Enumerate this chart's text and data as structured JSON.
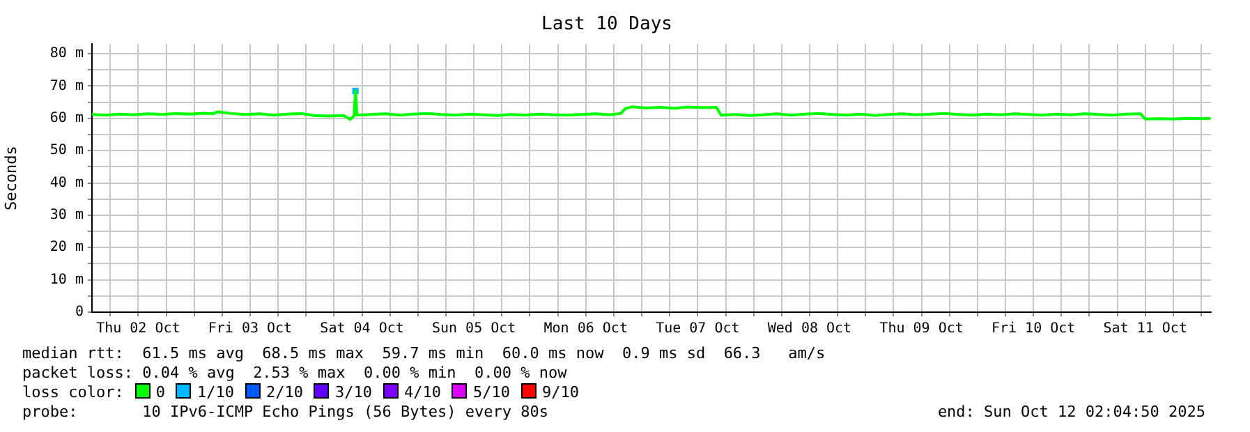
{
  "chart_data": {
    "type": "line",
    "title": "Last 10 Days",
    "ylabel": "Seconds",
    "legend_title": "loss color:",
    "x": [
      "2025-10-02T02:06",
      "2025-10-02T05:00",
      "2025-10-02T08:00",
      "2025-10-02T11:00",
      "2025-10-02T14:00",
      "2025-10-02T17:00",
      "2025-10-02T20:00",
      "2025-10-02T23:00",
      "2025-10-03T02:00",
      "2025-10-03T04:00",
      "2025-10-03T05:00",
      "2025-10-03T08:00",
      "2025-10-03T11:00",
      "2025-10-03T14:00",
      "2025-10-03T17:00",
      "2025-10-03T20:00",
      "2025-10-03T23:00",
      "2025-10-04T02:00",
      "2025-10-04T05:00",
      "2025-10-04T08:00",
      "2025-10-04T09:30",
      "2025-10-04T10:18",
      "2025-10-04T10:36",
      "2025-10-04T10:54",
      "2025-10-04T14:00",
      "2025-10-04T17:00",
      "2025-10-04T20:00",
      "2025-10-04T23:00",
      "2025-10-05T02:00",
      "2025-10-05T05:00",
      "2025-10-05T08:00",
      "2025-10-05T11:00",
      "2025-10-05T14:00",
      "2025-10-05T17:00",
      "2025-10-05T20:00",
      "2025-10-05T23:00",
      "2025-10-06T02:00",
      "2025-10-06T05:00",
      "2025-10-06T08:00",
      "2025-10-06T11:00",
      "2025-10-06T14:00",
      "2025-10-06T17:00",
      "2025-10-06T19:30",
      "2025-10-06T20:30",
      "2025-10-06T22:00",
      "2025-10-07T01:00",
      "2025-10-07T04:00",
      "2025-10-07T07:00",
      "2025-10-07T10:00",
      "2025-10-07T13:00",
      "2025-10-07T16:00",
      "2025-10-07T17:00",
      "2025-10-07T20:00",
      "2025-10-07T23:00",
      "2025-10-08T02:00",
      "2025-10-08T05:00",
      "2025-10-08T08:00",
      "2025-10-08T11:00",
      "2025-10-08T14:00",
      "2025-10-08T17:00",
      "2025-10-08T20:00",
      "2025-10-08T23:00",
      "2025-10-09T02:00",
      "2025-10-09T05:00",
      "2025-10-09T08:00",
      "2025-10-09T11:00",
      "2025-10-09T14:00",
      "2025-10-09T17:00",
      "2025-10-09T20:00",
      "2025-10-09T23:00",
      "2025-10-10T02:00",
      "2025-10-10T05:00",
      "2025-10-10T08:00",
      "2025-10-10T11:00",
      "2025-10-10T14:00",
      "2025-10-10T17:00",
      "2025-10-10T20:00",
      "2025-10-10T23:00",
      "2025-10-11T02:00",
      "2025-10-11T05:00",
      "2025-10-11T08:00",
      "2025-10-11T11:00",
      "2025-10-11T12:00",
      "2025-10-11T15:00",
      "2025-10-11T18:00",
      "2025-10-11T21:00",
      "2025-10-12T00:00",
      "2025-10-12T02:00"
    ],
    "series": [
      {
        "name": "0",
        "color": "#00ff00",
        "values": [
          61.2,
          61.0,
          61.3,
          61.1,
          61.4,
          61.2,
          61.5,
          61.3,
          61.6,
          61.4,
          62.0,
          61.5,
          61.2,
          61.4,
          61.0,
          61.3,
          61.5,
          60.8,
          60.7,
          60.9,
          59.7,
          60.8,
          68.5,
          61.0,
          61.2,
          61.4,
          61.0,
          61.3,
          61.5,
          61.2,
          61.0,
          61.3,
          61.1,
          60.9,
          61.2,
          61.0,
          61.3,
          61.1,
          61.0,
          61.2,
          61.4,
          61.1,
          61.5,
          63.0,
          63.6,
          63.2,
          63.4,
          63.1,
          63.5,
          63.3,
          63.4,
          61.0,
          61.2,
          60.9,
          61.1,
          61.4,
          61.0,
          61.3,
          61.5,
          61.2,
          61.0,
          61.3,
          60.9,
          61.2,
          61.4,
          61.1,
          61.3,
          61.5,
          61.2,
          61.0,
          61.3,
          61.1,
          61.4,
          61.2,
          61.0,
          61.3,
          61.1,
          61.4,
          61.2,
          61.0,
          61.3,
          61.4,
          59.8,
          59.9,
          59.8,
          60.0,
          59.9,
          60.0
        ]
      },
      {
        "name": "1/10",
        "color": "#00b8ff",
        "type": "scatter",
        "marker": "square",
        "values": [
          null,
          null,
          null,
          null,
          null,
          null,
          null,
          null,
          null,
          null,
          null,
          null,
          null,
          null,
          null,
          null,
          null,
          null,
          null,
          null,
          null,
          null,
          68.5,
          null,
          null,
          null,
          null,
          null,
          null,
          null,
          null,
          null,
          null,
          null,
          null,
          null,
          null,
          null,
          null,
          null,
          null,
          null,
          null,
          null,
          null,
          null,
          null,
          null,
          null,
          null,
          null,
          null,
          null,
          null,
          null,
          null,
          null,
          null,
          null,
          null,
          null,
          null,
          null,
          null,
          null,
          null,
          null,
          null,
          null,
          null,
          null,
          null,
          null,
          null,
          null,
          null,
          null,
          null,
          null,
          null,
          null,
          null,
          null,
          null,
          null,
          null,
          null,
          null
        ]
      },
      {
        "name": "2/10",
        "color": "#0059ff",
        "type": "scatter",
        "marker": "square",
        "values": [
          null,
          null,
          null,
          null,
          null,
          null,
          null,
          null,
          null,
          null,
          null,
          null,
          null,
          null,
          null,
          null,
          null,
          null,
          null,
          null,
          null,
          null,
          null,
          null,
          null,
          null,
          null,
          null,
          null,
          null,
          null,
          null,
          null,
          null,
          null,
          null,
          null,
          null,
          null,
          null,
          null,
          null,
          null,
          null,
          null,
          null,
          null,
          null,
          null,
          null,
          null,
          null,
          null,
          null,
          null,
          null,
          null,
          null,
          null,
          null,
          null,
          null,
          null,
          null,
          null,
          null,
          null,
          null,
          null,
          null,
          null,
          null,
          null,
          null,
          null,
          null,
          null,
          null,
          null,
          null,
          null,
          null,
          null,
          null,
          null,
          null,
          null,
          null
        ]
      },
      {
        "name": "3/10",
        "color": "#5e00ff",
        "type": "scatter",
        "marker": "square",
        "values": [
          null,
          null,
          null,
          null,
          null,
          null,
          null,
          null,
          null,
          null,
          null,
          null,
          null,
          null,
          null,
          null,
          null,
          null,
          null,
          null,
          null,
          null,
          null,
          null,
          null,
          null,
          null,
          null,
          null,
          null,
          null,
          null,
          null,
          null,
          null,
          null,
          null,
          null,
          null,
          null,
          null,
          null,
          null,
          null,
          null,
          null,
          null,
          null,
          null,
          null,
          null,
          null,
          null,
          null,
          null,
          null,
          null,
          null,
          null,
          null,
          null,
          null,
          null,
          null,
          null,
          null,
          null,
          null,
          null,
          null,
          null,
          null,
          null,
          null,
          null,
          null,
          null,
          null,
          null,
          null,
          null,
          null,
          null,
          null,
          null,
          null,
          null,
          null
        ]
      },
      {
        "name": "4/10",
        "color": "#7e00ff",
        "type": "scatter",
        "marker": "square",
        "values": [
          null,
          null,
          null,
          null,
          null,
          null,
          null,
          null,
          null,
          null,
          null,
          null,
          null,
          null,
          null,
          null,
          null,
          null,
          null,
          null,
          null,
          null,
          null,
          null,
          null,
          null,
          null,
          null,
          null,
          null,
          null,
          null,
          null,
          null,
          null,
          null,
          null,
          null,
          null,
          null,
          null,
          null,
          null,
          null,
          null,
          null,
          null,
          null,
          null,
          null,
          null,
          null,
          null,
          null,
          null,
          null,
          null,
          null,
          null,
          null,
          null,
          null,
          null,
          null,
          null,
          null,
          null,
          null,
          null,
          null,
          null,
          null,
          null,
          null,
          null,
          null,
          null,
          null,
          null,
          null,
          null,
          null,
          null,
          null,
          null,
          null,
          null,
          null
        ]
      },
      {
        "name": "5/10",
        "color": "#dd00ff",
        "type": "scatter",
        "marker": "square",
        "values": [
          null,
          null,
          null,
          null,
          null,
          null,
          null,
          null,
          null,
          null,
          null,
          null,
          null,
          null,
          null,
          null,
          null,
          null,
          null,
          null,
          null,
          null,
          null,
          null,
          null,
          null,
          null,
          null,
          null,
          null,
          null,
          null,
          null,
          null,
          null,
          null,
          null,
          null,
          null,
          null,
          null,
          null,
          null,
          null,
          null,
          null,
          null,
          null,
          null,
          null,
          null,
          null,
          null,
          null,
          null,
          null,
          null,
          null,
          null,
          null,
          null,
          null,
          null,
          null,
          null,
          null,
          null,
          null,
          null,
          null,
          null,
          null,
          null,
          null,
          null,
          null,
          null,
          null,
          null,
          null,
          null,
          null,
          null,
          null,
          null,
          null,
          null,
          null
        ]
      },
      {
        "name": "9/10",
        "color": "#ff0000",
        "type": "scatter",
        "marker": "square",
        "values": [
          null,
          null,
          null,
          null,
          null,
          null,
          null,
          null,
          null,
          null,
          null,
          null,
          null,
          null,
          null,
          null,
          null,
          null,
          null,
          null,
          null,
          null,
          null,
          null,
          null,
          null,
          null,
          null,
          null,
          null,
          null,
          null,
          null,
          null,
          null,
          null,
          null,
          null,
          null,
          null,
          null,
          null,
          null,
          null,
          null,
          null,
          null,
          null,
          null,
          null,
          null,
          null,
          null,
          null,
          null,
          null,
          null,
          null,
          null,
          null,
          null,
          null,
          null,
          null,
          null,
          null,
          null,
          null,
          null,
          null,
          null,
          null,
          null,
          null,
          null,
          null,
          null,
          null,
          null,
          null,
          null,
          null,
          null,
          null,
          null,
          null,
          null,
          null
        ]
      }
    ],
    "xlim": [
      "2025-10-02T02:05",
      "2025-10-12T02:05"
    ],
    "xticks": [
      {
        "value": "2025-10-02T06:00",
        "label": null
      },
      {
        "value": "2025-10-02T12:00",
        "label": "Thu 02 Oct"
      },
      {
        "value": "2025-10-02T18:00",
        "label": null
      },
      {
        "value": "2025-10-03T00:00",
        "label": null
      },
      {
        "value": "2025-10-03T06:00",
        "label": null
      },
      {
        "value": "2025-10-03T12:00",
        "label": "Fri 03 Oct"
      },
      {
        "value": "2025-10-03T18:00",
        "label": null
      },
      {
        "value": "2025-10-04T00:00",
        "label": null
      },
      {
        "value": "2025-10-04T06:00",
        "label": null
      },
      {
        "value": "2025-10-04T12:00",
        "label": "Sat 04 Oct"
      },
      {
        "value": "2025-10-04T18:00",
        "label": null
      },
      {
        "value": "2025-10-05T00:00",
        "label": null
      },
      {
        "value": "2025-10-05T06:00",
        "label": null
      },
      {
        "value": "2025-10-05T12:00",
        "label": "Sun 05 Oct"
      },
      {
        "value": "2025-10-05T18:00",
        "label": null
      },
      {
        "value": "2025-10-06T00:00",
        "label": null
      },
      {
        "value": "2025-10-06T06:00",
        "label": null
      },
      {
        "value": "2025-10-06T12:00",
        "label": "Mon 06 Oct"
      },
      {
        "value": "2025-10-06T18:00",
        "label": null
      },
      {
        "value": "2025-10-07T00:00",
        "label": null
      },
      {
        "value": "2025-10-07T06:00",
        "label": null
      },
      {
        "value": "2025-10-07T12:00",
        "label": "Tue 07 Oct"
      },
      {
        "value": "2025-10-07T18:00",
        "label": null
      },
      {
        "value": "2025-10-08T00:00",
        "label": null
      },
      {
        "value": "2025-10-08T06:00",
        "label": null
      },
      {
        "value": "2025-10-08T12:00",
        "label": "Wed 08 Oct"
      },
      {
        "value": "2025-10-08T18:00",
        "label": null
      },
      {
        "value": "2025-10-09T00:00",
        "label": null
      },
      {
        "value": "2025-10-09T06:00",
        "label": null
      },
      {
        "value": "2025-10-09T12:00",
        "label": "Thu 09 Oct"
      },
      {
        "value": "2025-10-09T18:00",
        "label": null
      },
      {
        "value": "2025-10-10T00:00",
        "label": null
      },
      {
        "value": "2025-10-10T06:00",
        "label": null
      },
      {
        "value": "2025-10-10T12:00",
        "label": "Fri 10 Oct"
      },
      {
        "value": "2025-10-10T18:00",
        "label": null
      },
      {
        "value": "2025-10-11T00:00",
        "label": null
      },
      {
        "value": "2025-10-11T06:00",
        "label": null
      },
      {
        "value": "2025-10-11T12:00",
        "label": "Sat 11 Oct"
      },
      {
        "value": "2025-10-11T18:00",
        "label": null
      },
      {
        "value": "2025-10-12T00:00",
        "label": null
      }
    ],
    "ylim": [
      0,
      83
    ],
    "yticks": [
      0,
      {
        "value": 5,
        "label": null
      },
      {
        "value": 10,
        "label": "10 m"
      },
      {
        "value": 15,
        "label": null
      },
      {
        "value": 20,
        "label": "20 m"
      },
      {
        "value": 25,
        "label": null
      },
      {
        "value": 30,
        "label": "30 m"
      },
      {
        "value": 35,
        "label": null
      },
      {
        "value": 40,
        "label": "40 m"
      },
      {
        "value": 45,
        "label": null
      },
      {
        "value": 50,
        "label": "50 m"
      },
      {
        "value": 55,
        "label": null
      },
      {
        "value": 60,
        "label": "60 m"
      },
      {
        "value": 65,
        "label": null
      },
      {
        "value": 70,
        "label": "70 m"
      },
      {
        "value": 75,
        "label": null
      },
      {
        "value": 80,
        "label": "80 m"
      }
    ],
    "grid": true,
    "legend": "bottom",
    "marker": "none",
    "line_style": "solid",
    "annotations": [
      "median rtt:  61.5 ms avg  68.5 ms max  59.7 ms min  60.0 ms now  0.9 ms sd  66.3   am/s",
      "packet loss: 0.04 % avg  2.53 % max  0.00 % min  0.00 % now",
      "probe:       10 IPv6-ICMP Echo Pings (56 Bytes) every 80s",
      "end: Sun Oct 12 02:04:50 2025"
    ]
  }
}
